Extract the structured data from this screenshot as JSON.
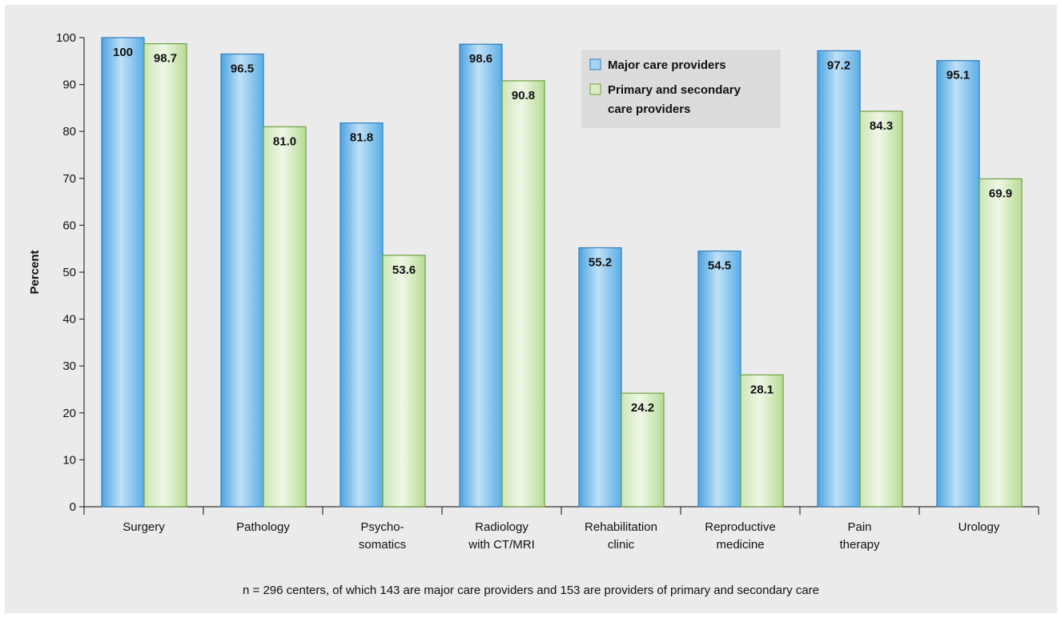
{
  "chart_data": {
    "type": "bar",
    "categories": [
      [
        "Surgery"
      ],
      [
        "Pathology"
      ],
      [
        "Psycho-",
        "somatics"
      ],
      [
        "Radiology",
        "with CT/MRI"
      ],
      [
        "Rehabilitation",
        "clinic"
      ],
      [
        "Reproductive",
        "medicine"
      ],
      [
        "Pain",
        "therapy"
      ],
      [
        "Urology"
      ]
    ],
    "series": [
      {
        "name": "Major care providers",
        "values": [
          100,
          96.5,
          81.8,
          98.6,
          55.2,
          54.5,
          97.2,
          95.1
        ],
        "value_labels": [
          "100",
          "96.5",
          "81.8",
          "98.6",
          "55.2",
          "54.5",
          "97.2",
          "95.1"
        ],
        "color": "#5aaee6"
      },
      {
        "name": "Primary and secondary care providers",
        "legend_lines": [
          "Primary and secondary",
          "care providers"
        ],
        "values": [
          98.7,
          81.0,
          53.6,
          90.8,
          24.2,
          28.1,
          84.3,
          69.9
        ],
        "value_labels": [
          "98.7",
          "81.0",
          "53.6",
          "90.8",
          "24.2",
          "28.1",
          "84.3",
          "69.9"
        ],
        "color": "#a9d07e"
      }
    ],
    "ylabel": "Percent",
    "xlabel": "",
    "ylim": [
      0,
      100
    ],
    "yticks": [
      0,
      10,
      20,
      30,
      40,
      50,
      60,
      70,
      80,
      90,
      100
    ],
    "grid": false,
    "legend_position": "top-center",
    "footnote": "n = 296 centers, of which 143 are major care providers and 153 are providers of primary and secondary care"
  }
}
